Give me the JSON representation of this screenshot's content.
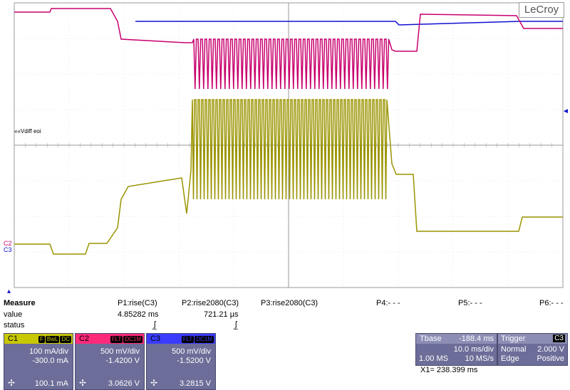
{
  "logo": "LeCroy",
  "screen": {
    "ref_label": "««Vdiff eoi",
    "c2_marker": "C2",
    "c3_marker": "C3",
    "arrow_right": "◄",
    "arrow_bottom": "▴"
  },
  "measure": {
    "title": "Measure",
    "row_value": "value",
    "row_status": "status",
    "params": [
      {
        "name": "P1:rise(C3)",
        "value": "4.85282 ms",
        "status": "ʃ̲"
      },
      {
        "name": "P2:rise2080(C3)",
        "value": "721.21 µs",
        "status": "ʃ̲"
      },
      {
        "name": "P3:rise2080(C3)",
        "value": "",
        "status": ""
      },
      {
        "name": "P4:- - -",
        "value": "",
        "status": ""
      },
      {
        "name": "P5:- - -",
        "value": "",
        "status": ""
      },
      {
        "name": "P6:- - -",
        "value": "",
        "status": ""
      }
    ]
  },
  "channels": [
    {
      "name": "C1",
      "tags": [
        "F",
        "BwL",
        "DC"
      ],
      "scale": "100 mA/div",
      "offset": "-300.0 mA",
      "reading": "100.1 mA",
      "color": "#c8c800"
    },
    {
      "name": "C2",
      "tags": [
        "FLT",
        "DC1M"
      ],
      "scale": "500 mV/div",
      "offset": "-1.4200 V",
      "reading": "3.0626 V",
      "color": "#ff2a7a"
    },
    {
      "name": "C3",
      "tags": [
        "FLT",
        "DC1M"
      ],
      "scale": "500 mV/div",
      "offset": "-1.5200 V",
      "reading": "3.2815 V",
      "color": "#3b3bff"
    }
  ],
  "timebase": {
    "label": "Tbase",
    "delay": "-188.4 ms",
    "per_div": "10.0 ms/div",
    "samples": "1.00 MS",
    "rate": "10 MS/s"
  },
  "trigger": {
    "label": "Trigger",
    "source": "C3",
    "mode": "Normal",
    "level": "2.000 V",
    "type": "Edge",
    "slope": "Positive"
  },
  "cursor": {
    "x1": "X1= 238.399 ms"
  },
  "colors": {
    "c1": "#9a9400",
    "c2": "#c8006e",
    "c3": "#1010d0"
  }
}
